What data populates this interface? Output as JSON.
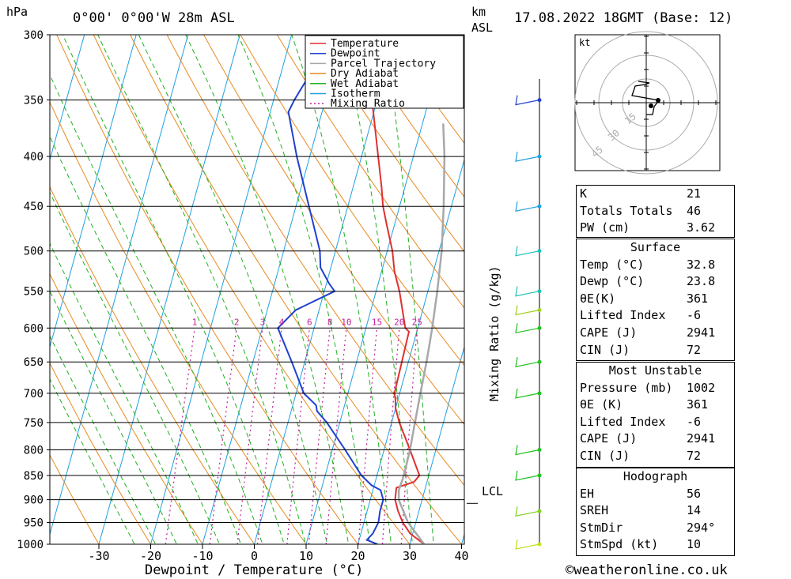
{
  "header": {
    "pressure_unit": "hPa",
    "location": "0°00' 0°00'W 28m ASL",
    "height_unit_1": "km",
    "height_unit_2": "ASL",
    "datetime": "17.08.2022 18GMT (Base: 12)",
    "lcl_label": "LCL",
    "footer": "©weatheronline.co.uk",
    "hodograph_unit": "kt"
  },
  "chart_data": {
    "type": "line",
    "xlabel": "Dewpoint / Temperature (°C)",
    "ylabel": "hPa",
    "xlim": [
      -40,
      40
    ],
    "pressure_levels": [
      300,
      350,
      400,
      450,
      500,
      550,
      600,
      650,
      700,
      750,
      800,
      850,
      900,
      950,
      1000
    ],
    "temperature_ticks": [
      -30,
      -20,
      -10,
      0,
      10,
      20,
      30,
      40
    ],
    "mixing_ratio_axis_label": "Mixing Ratio (g/kg)",
    "mixing_ratio_labels": [
      "1",
      "2",
      "3",
      "4",
      "6",
      "8",
      "10",
      "15",
      "20",
      "25"
    ],
    "legend": [
      "Temperature",
      "Dewpoint",
      "Parcel Trajectory",
      "Dry Adiabat",
      "Wet Adiabat",
      "Isotherm",
      "Mixing Ratio"
    ],
    "colors": {
      "temperature": "#e03030",
      "dewpoint": "#2040d0",
      "parcel": "#a8a8a8",
      "dry_adiabat": "#e88a20",
      "wet_adiabat": "#20b020",
      "isotherm": "#20a0e0",
      "mixing_ratio": "#c0209a"
    },
    "series": [
      {
        "name": "Temperature",
        "points": [
          [
            1000,
            32.8
          ],
          [
            975,
            29.5
          ],
          [
            950,
            27.5
          ],
          [
            925,
            26.0
          ],
          [
            900,
            24.8
          ],
          [
            875,
            24.4
          ],
          [
            863,
            27.5
          ],
          [
            850,
            28.2
          ],
          [
            800,
            25.0
          ],
          [
            750,
            21.5
          ],
          [
            725,
            20.0
          ],
          [
            710,
            19.5
          ],
          [
            700,
            19.0
          ],
          [
            605,
            18.5
          ],
          [
            600,
            17.6
          ],
          [
            550,
            14.5
          ],
          [
            525,
            12.5
          ],
          [
            500,
            11.0
          ],
          [
            470,
            8.5
          ],
          [
            450,
            6.8
          ],
          [
            430,
            5.5
          ],
          [
            400,
            3.2
          ],
          [
            350,
            -1.0
          ],
          [
            325,
            -2.5
          ]
        ]
      },
      {
        "name": "Dewpoint",
        "points": [
          [
            1000,
            23.8
          ],
          [
            990,
            21.5
          ],
          [
            975,
            22.3
          ],
          [
            950,
            22.8
          ],
          [
            925,
            22.5
          ],
          [
            900,
            22.5
          ],
          [
            880,
            21.5
          ],
          [
            870,
            19.5
          ],
          [
            850,
            17.0
          ],
          [
            800,
            12.5
          ],
          [
            750,
            7.5
          ],
          [
            730,
            5.0
          ],
          [
            720,
            4.5
          ],
          [
            700,
            1.5
          ],
          [
            650,
            -2.5
          ],
          [
            600,
            -7.0
          ],
          [
            575,
            -4.5
          ],
          [
            550,
            2.0
          ],
          [
            540,
            0.5
          ],
          [
            520,
            -2.0
          ],
          [
            500,
            -3.0
          ],
          [
            450,
            -7.5
          ],
          [
            400,
            -12.5
          ],
          [
            360,
            -16.5
          ],
          [
            350,
            -16.0
          ],
          [
            325,
            -14.0
          ]
        ]
      },
      {
        "name": "Parcel Trajectory",
        "points": [
          [
            1000,
            32.8
          ],
          [
            950,
            28.5
          ],
          [
            900,
            25.5
          ],
          [
            880,
            25.0
          ],
          [
            850,
            25.2
          ],
          [
            800,
            25.0
          ],
          [
            750,
            24.5
          ],
          [
            700,
            24.0
          ],
          [
            650,
            23.5
          ],
          [
            600,
            22.8
          ],
          [
            550,
            21.8
          ],
          [
            500,
            20.5
          ],
          [
            450,
            18.5
          ],
          [
            400,
            16.0
          ],
          [
            370,
            14.0
          ]
        ]
      }
    ]
  },
  "hodograph": {
    "type": "line",
    "ring_labels": [
      "15",
      "30",
      "45"
    ],
    "u": [
      0,
      0.8,
      0.9,
      1.0,
      1.6,
      -1.8,
      -1.4,
      -0.2,
      0.4,
      -1.0
    ],
    "v": [
      -1.5,
      -1.5,
      -1.0,
      -0.5,
      0.3,
      0.9,
      2.1,
      2.3,
      2.5,
      2.7
    ],
    "arrows": [
      [
        1.5,
        0.3
      ],
      [
        0.6,
        -0.4
      ]
    ]
  },
  "indices": {
    "general": [
      {
        "label": "K",
        "value": "21"
      },
      {
        "label": "Totals Totals",
        "value": "46"
      },
      {
        "label": "PW (cm)",
        "value": "3.62"
      }
    ],
    "surface_title": "Surface",
    "surface": [
      {
        "label": "Temp (°C)",
        "value": "32.8"
      },
      {
        "label": "Dewp (°C)",
        "value": "23.8"
      },
      {
        "label": "θE(K)",
        "value": "361"
      },
      {
        "label": "Lifted Index",
        "value": "-6"
      },
      {
        "label": "CAPE (J)",
        "value": "2941"
      },
      {
        "label": "CIN (J)",
        "value": "72"
      }
    ],
    "mu_title": "Most Unstable",
    "most_unstable": [
      {
        "label": "Pressure (mb)",
        "value": "1002"
      },
      {
        "label": "θE (K)",
        "value": "361"
      },
      {
        "label": "Lifted Index",
        "value": "-6"
      },
      {
        "label": "CAPE (J)",
        "value": "2941"
      },
      {
        "label": "CIN (J)",
        "value": "72"
      }
    ],
    "hodo_title": "Hodograph",
    "hodo_params": [
      {
        "label": "EH",
        "value": "56"
      },
      {
        "label": "SREH",
        "value": "14"
      },
      {
        "label": "StmDir",
        "value": "294°"
      },
      {
        "label": "StmSpd (kt)",
        "value": "10"
      }
    ]
  }
}
